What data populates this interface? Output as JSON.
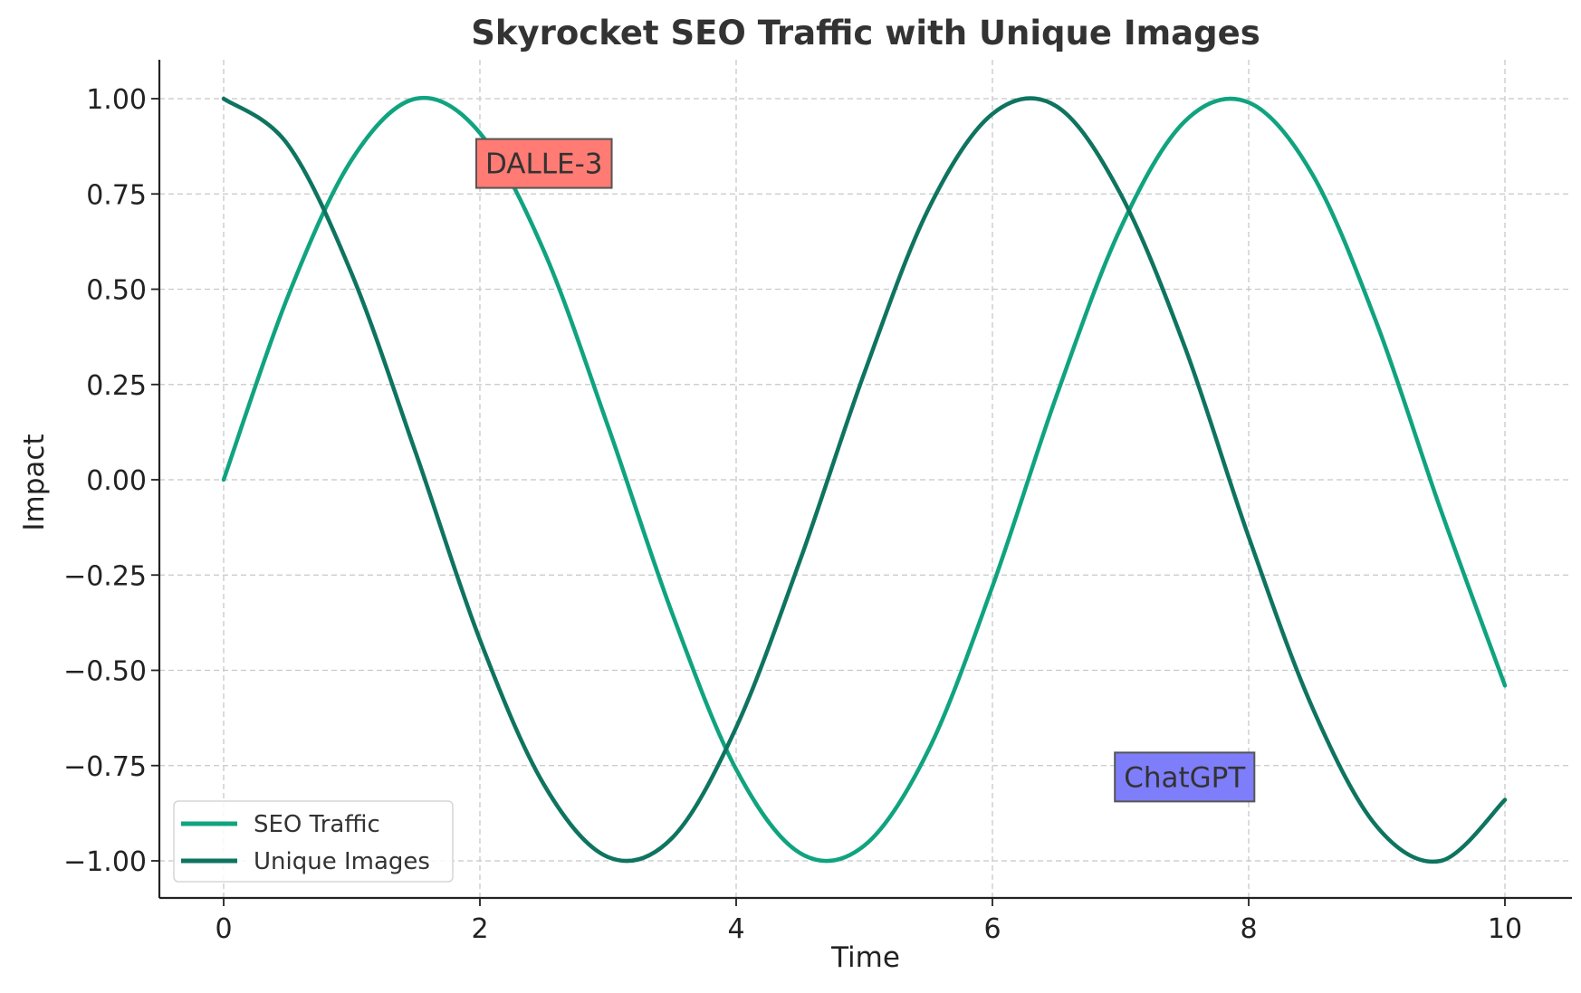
{
  "chart_data": {
    "type": "line",
    "title": "Skyrocket SEO Traffic with Unique Images",
    "xlabel": "Time",
    "ylabel": "Impact",
    "xlim": [
      -0.5,
      10.5
    ],
    "ylim": [
      -1.1,
      1.1
    ],
    "grid": true,
    "legend_position": "lower-left",
    "x_ticks": [
      0,
      2,
      4,
      6,
      8,
      10
    ],
    "x_tick_labels": [
      "0",
      "2",
      "4",
      "6",
      "8",
      "10"
    ],
    "y_ticks": [
      1.0,
      0.75,
      0.5,
      0.25,
      0.0,
      -0.25,
      -0.5,
      -0.75,
      -1.0
    ],
    "y_tick_labels": [
      "1.00",
      "0.75",
      "0.50",
      "0.25",
      "0.00",
      "−0.25",
      "−0.50",
      "−0.75",
      "−1.00"
    ],
    "x": [
      0.0,
      0.5,
      1.0,
      1.5,
      2.0,
      2.5,
      3.0,
      3.5,
      4.0,
      4.5,
      5.0,
      5.5,
      6.0,
      6.5,
      7.0,
      7.5,
      8.0,
      8.5,
      9.0,
      9.5,
      10.0
    ],
    "series": [
      {
        "name": "SEO Traffic",
        "color": "#10a37f",
        "values": [
          0.0,
          0.48,
          0.84,
          1.0,
          0.91,
          0.6,
          0.14,
          -0.35,
          -0.76,
          -0.98,
          -0.96,
          -0.71,
          -0.28,
          0.22,
          0.66,
          0.94,
          0.99,
          0.8,
          0.41,
          -0.08,
          -0.54
        ]
      },
      {
        "name": "Unique Images",
        "color": "#0e7460",
        "values": [
          1.0,
          0.88,
          0.54,
          0.07,
          -0.42,
          -0.8,
          -0.99,
          -0.94,
          -0.65,
          -0.21,
          0.28,
          0.71,
          0.96,
          0.98,
          0.75,
          0.35,
          -0.15,
          -0.6,
          -0.91,
          -1.0,
          -0.84
        ]
      }
    ],
    "annotations": [
      {
        "text": "DALLE-3",
        "x": 2.5,
        "y": 0.83,
        "color": "#ff7b74"
      },
      {
        "text": "ChatGPT",
        "x": 7.5,
        "y": -0.78,
        "color": "#7e7efb"
      }
    ]
  }
}
